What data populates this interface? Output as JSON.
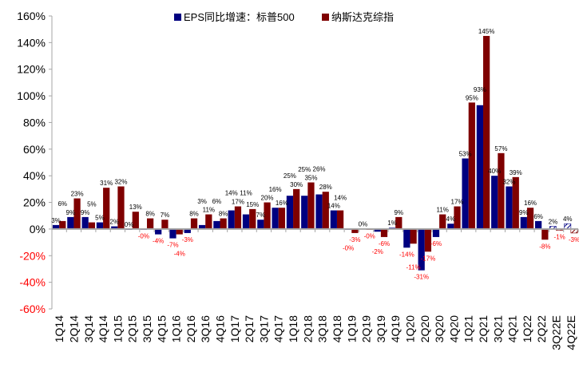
{
  "chart_data": {
    "type": "bar",
    "title": "",
    "xlabel": "",
    "ylabel": "",
    "ylim": [
      -60,
      160
    ],
    "yticks": [
      -60,
      -40,
      -20,
      0,
      20,
      40,
      60,
      80,
      100,
      120,
      140,
      160
    ],
    "ytick_labels": [
      "-60%",
      "-40%",
      "-20%",
      "0%",
      "20%",
      "40%",
      "60%",
      "80%",
      "100%",
      "120%",
      "140%",
      "160%"
    ],
    "legend_position": "top",
    "categories": [
      "1Q14",
      "2Q14",
      "3Q14",
      "4Q14",
      "1Q15",
      "2Q15",
      "3Q15",
      "4Q15",
      "1Q16",
      "2Q16",
      "3Q16",
      "4Q16",
      "1Q17",
      "2Q17",
      "3Q17",
      "4Q17",
      "1Q18",
      "2Q18",
      "3Q18",
      "4Q18",
      "1Q19",
      "2Q19",
      "3Q19",
      "4Q19",
      "1Q20",
      "2Q20",
      "3Q20",
      "4Q20",
      "1Q21",
      "2Q21",
      "3Q21",
      "4Q21",
      "1Q22",
      "2Q22",
      "3Q22E",
      "4Q22E"
    ],
    "estimate_categories": [
      "3Q22E",
      "4Q22E"
    ],
    "series": [
      {
        "name": "EPS同比增速：标普500",
        "color": "#000080",
        "values": [
          3,
          9,
          9,
          5,
          2,
          0,
          -0.5,
          -4,
          -7,
          -3,
          3,
          6,
          14,
          11,
          7,
          16,
          25,
          25,
          26,
          14,
          -0.5,
          0.3,
          -2,
          1,
          -14,
          -31,
          -6,
          4,
          53,
          93,
          40,
          32,
          9,
          6,
          2,
          4
        ],
        "labels": [
          "3%",
          "9%",
          "9%",
          "5%",
          "2%",
          "0%",
          "-0%",
          "-4%",
          "-7%",
          "-3%",
          "3%",
          "6%",
          "14%",
          "11%",
          "7%",
          "16%",
          "25%",
          "25%",
          "26%",
          "14%",
          "-0%",
          "0%",
          "-2%",
          "1%",
          "-14%",
          "-31%",
          "-6%",
          "4%",
          "53%",
          "93%",
          "40%",
          "32%",
          "9%",
          "6%",
          "2%",
          "4%"
        ]
      },
      {
        "name": "纳斯达克综指",
        "color": "#7f0000",
        "values": [
          6,
          23,
          5,
          31,
          32,
          13,
          8,
          7,
          -4,
          8,
          11,
          8,
          17,
          15,
          20,
          16,
          30,
          35,
          28,
          14,
          -3,
          -0.5,
          -6,
          9,
          -11,
          -17,
          11,
          17,
          95,
          145,
          57,
          39,
          16,
          -8,
          -1,
          -3
        ],
        "labels": [
          "6%",
          "23%",
          "5%",
          "31%",
          "32%",
          "13%",
          "8%",
          "7%",
          "-4%",
          "8%",
          "11%",
          "8%",
          "17%",
          "15%",
          "20%",
          "16%",
          "30%",
          "35%",
          "28%",
          "14%",
          "-3%",
          "-0%",
          "-6%",
          "9%",
          "-11%",
          "-17%",
          "11%",
          "17%",
          "95%",
          "145%",
          "57%",
          "39%",
          "16%",
          "-8%",
          "-1%",
          "-3%"
        ]
      }
    ],
    "colors": {
      "positive_label": "#000000",
      "negative_label": "#ff0000",
      "axis": "#a6a6a6",
      "ytick_negative": "#ff0000",
      "ytick_positive": "#000000"
    }
  }
}
